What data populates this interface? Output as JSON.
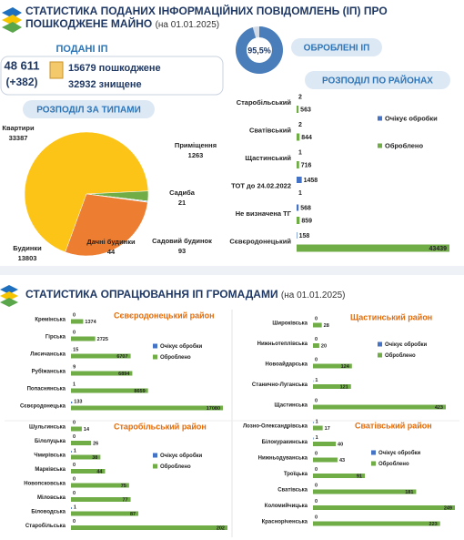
{
  "header": {
    "title": "СТАТИСТИКА ПОДАНИХ ІНФОРМАЦІЙНИХ ПОВІДОМЛЕНЬ (ІП) ПРО ПОШКОДЖЕНЕ МАЙНО",
    "date": "(на 01.01.2025)"
  },
  "submitted": {
    "title": "ПОДАНІ ІП",
    "total": "48 611",
    "change": "(+382)",
    "damaged": "15679 пошкоджене",
    "destroyed": "32932 знищене"
  },
  "section2": {
    "title": "СТАТИСТИКА ОПРАЦЮВАННЯ ІП ГРОМАДАМИ",
    "date": "(на 01.01.2025)"
  },
  "chart_data": [
    {
      "type": "donut",
      "title": "ОБРОБЛЕНІ ІП",
      "values": [
        95.5
      ],
      "value_labels": [
        "95,5%"
      ],
      "color": "#4a7ebb",
      "track_color": "#d3dbe6"
    },
    {
      "type": "pie",
      "title": "РОЗПОДІЛ ЗА ТИПАМИ",
      "categories": [
        "Квартири",
        "Приміщення",
        "Садиба",
        "Садовий будинок",
        "Дачні будинки",
        "Будинки"
      ],
      "values": [
        33387,
        1263,
        21,
        93,
        44,
        13803
      ],
      "colors": [
        "#fdc418",
        "#70ad47",
        "#a5a5a5",
        "#4472c4",
        "#5b9bd5",
        "#ed7d31"
      ]
    },
    {
      "type": "hbar",
      "title": "РОЗПОДІЛ ПО РАЙОНАХ",
      "categories": [
        "Старобільський",
        "Сватівський",
        "Щастинський",
        "ТОТ до 24.02.2022",
        "Не визначена ТГ",
        "Сєвєродонецький"
      ],
      "series": [
        {
          "name": "Очікує обробки",
          "color": "#4472c4",
          "values": [
            2,
            2,
            1,
            1458,
            568,
            158
          ]
        },
        {
          "name": "Оброблено",
          "color": "#70ad47",
          "values": [
            563,
            844,
            716,
            1,
            859,
            43439
          ]
        }
      ]
    },
    {
      "type": "hbar",
      "title": "Сєвєродонецький район",
      "categories": [
        "Кремінська",
        "Гірська",
        "Лисичанська",
        "Рубіжанська",
        "Попаснянська",
        "Сєвєродонецька"
      ],
      "series": [
        {
          "name": "Очікує обробки",
          "color": "#4472c4",
          "values": [
            0,
            0,
            15,
            9,
            1,
            133
          ]
        },
        {
          "name": "Оброблено",
          "color": "#70ad47",
          "values": [
            1374,
            2725,
            6707,
            6894,
            8659,
            17080
          ]
        }
      ]
    },
    {
      "type": "hbar",
      "title": "Старобільський район",
      "categories": [
        "Шульгинська",
        "Білолуцька",
        "Чмирівська",
        "Марківська",
        "Новопсковська",
        "Міловська",
        "Біловодська",
        "Старобільська"
      ],
      "series": [
        {
          "name": "Очікує обробки",
          "color": "#4472c4",
          "values": [
            0,
            0,
            1,
            0,
            0,
            0,
            1,
            0
          ]
        },
        {
          "name": "Оброблено",
          "color": "#70ad47",
          "values": [
            14,
            26,
            38,
            44,
            75,
            77,
            87,
            202
          ]
        }
      ]
    },
    {
      "type": "hbar",
      "title": "Щастинський район",
      "categories": [
        "Широківська",
        "Нижньотеплівська",
        "Новоайдарська",
        "Станично-Луганська",
        "Щастинська"
      ],
      "series": [
        {
          "name": "Очікує обробки",
          "color": "#4472c4",
          "values": [
            0,
            0,
            0,
            1,
            0
          ]
        },
        {
          "name": "Оброблено",
          "color": "#70ad47",
          "values": [
            28,
            20,
            124,
            121,
            423
          ]
        }
      ]
    },
    {
      "type": "hbar",
      "title": "Сватівський район",
      "categories": [
        "Лозно-Олександрівська",
        "Білокуракинська",
        "Нижньодуванська",
        "Троїцька",
        "Сватівська",
        "Коломийчицька",
        "Красноріченська"
      ],
      "series": [
        {
          "name": "Очікує обробки",
          "color": "#4472c4",
          "values": [
            1,
            1,
            0,
            0,
            0,
            0,
            0
          ]
        },
        {
          "name": "Оброблено",
          "color": "#70ad47",
          "values": [
            17,
            40,
            43,
            91,
            181,
            249,
            223
          ]
        }
      ]
    }
  ]
}
